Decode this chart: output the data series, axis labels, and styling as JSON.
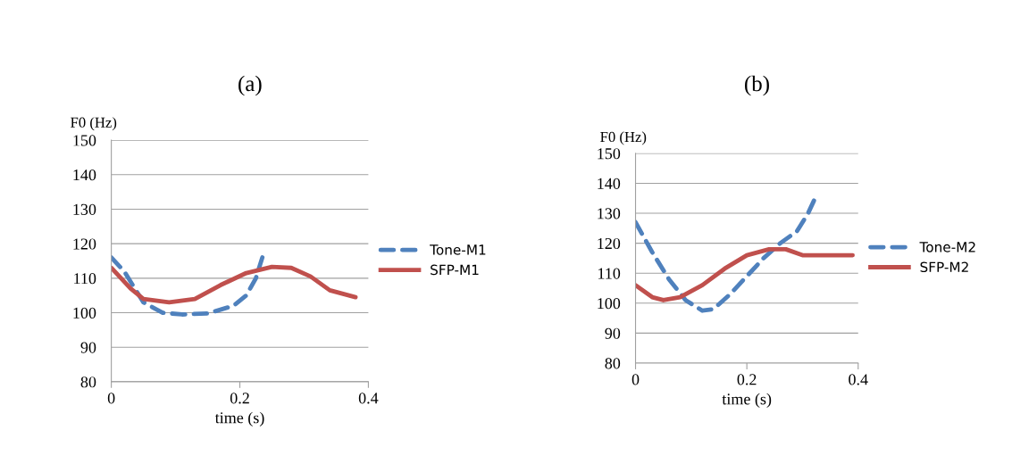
{
  "chart_data": [
    {
      "type": "line",
      "title": "(a)",
      "xlabel": "time (s)",
      "ylabel": "F0 (Hz)",
      "xlim": [
        0,
        0.4
      ],
      "xticks": [
        0,
        0.2,
        0.4
      ],
      "ylim": [
        80,
        150
      ],
      "yticks": [
        80,
        90,
        100,
        110,
        120,
        130,
        140,
        150
      ],
      "grid": "y",
      "legend": "right",
      "marker": "none",
      "series": [
        {
          "name": "Tone-M1",
          "color": "#4f81bd",
          "line_style": "dashed",
          "x": [
            0,
            0.02,
            0.05,
            0.08,
            0.11,
            0.15,
            0.19,
            0.21,
            0.225,
            0.235
          ],
          "values": [
            116,
            112,
            103,
            100,
            99.5,
            99.8,
            102,
            105,
            110,
            116
          ]
        },
        {
          "name": "SFP-M1",
          "color": "#c0504d",
          "line_style": "solid",
          "x": [
            0,
            0.03,
            0.05,
            0.09,
            0.13,
            0.17,
            0.21,
            0.25,
            0.28,
            0.31,
            0.34,
            0.38
          ],
          "values": [
            113,
            107,
            104,
            103,
            104,
            108,
            111.5,
            113.3,
            113,
            110.5,
            106.5,
            104.5
          ]
        }
      ]
    },
    {
      "type": "line",
      "title": "(b)",
      "xlabel": "time (s)",
      "ylabel": "F0 (Hz)",
      "xlim": [
        0,
        0.4
      ],
      "xticks": [
        0,
        0.2,
        0.4
      ],
      "ylim": [
        80,
        150
      ],
      "yticks": [
        80,
        90,
        100,
        110,
        120,
        130,
        140,
        150
      ],
      "grid": "y",
      "legend": "right",
      "marker": "none",
      "series": [
        {
          "name": "Tone-M2",
          "color": "#4f81bd",
          "line_style": "dashed",
          "x": [
            0,
            0.03,
            0.06,
            0.09,
            0.12,
            0.14,
            0.17,
            0.2,
            0.23,
            0.26,
            0.29,
            0.31,
            0.325
          ],
          "values": [
            127,
            117,
            108,
            101,
            97.5,
            98,
            103,
            109,
            115,
            120,
            124,
            130,
            136
          ]
        },
        {
          "name": "SFP-M2",
          "color": "#c0504d",
          "line_style": "solid",
          "x": [
            0,
            0.03,
            0.05,
            0.08,
            0.12,
            0.16,
            0.2,
            0.24,
            0.27,
            0.3,
            0.33,
            0.39
          ],
          "values": [
            106,
            102,
            101,
            102,
            106,
            111.5,
            116,
            118,
            118,
            116,
            116,
            116
          ]
        }
      ]
    }
  ]
}
